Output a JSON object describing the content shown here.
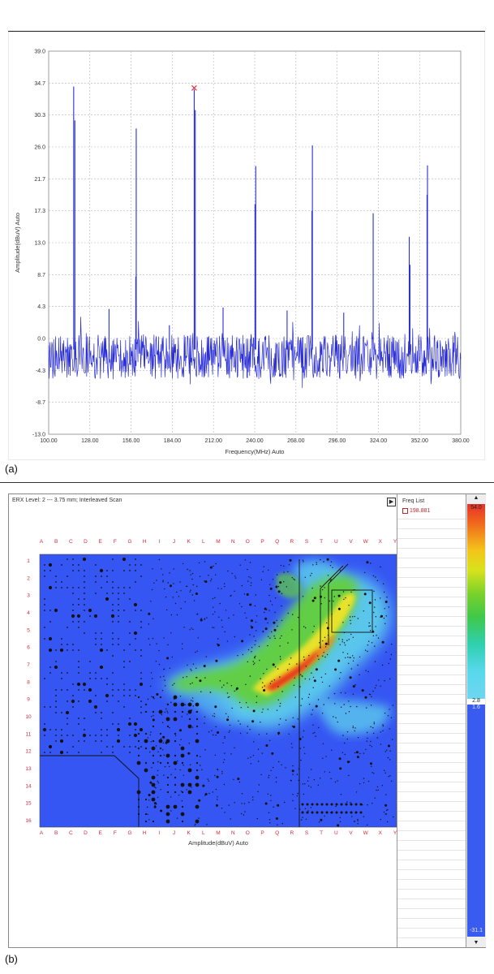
{
  "panel_a": {
    "caption": "(a)",
    "y_axis_label": "Amplitude(dBuV) Auto",
    "x_axis_label": "Frequency(MHz) Auto",
    "y_ticks": [
      "39.0",
      "34.7",
      "30.3",
      "26.0",
      "21.7",
      "17.3",
      "13.0",
      "8.7",
      "4.3",
      "0.0",
      "-4.3",
      "-8.7",
      "-13.0"
    ],
    "x_ticks": [
      "100.00",
      "128.00",
      "156.00",
      "184.00",
      "212.00",
      "240.00",
      "268.00",
      "296.00",
      "324.00",
      "352.00",
      "380.00"
    ],
    "trace_color": "#2a2ed6",
    "marker_color": "#e0202a"
  },
  "panel_b": {
    "caption": "(b)",
    "scan_title": "ERX Level: 2 --- 3.75 mm; Interleaved Scan",
    "x_axis_label": "Amplitude(dBuV) Auto",
    "column_labels": [
      "A",
      "B",
      "C",
      "D",
      "E",
      "F",
      "G",
      "H",
      "I",
      "J",
      "K",
      "L",
      "M",
      "N",
      "O",
      "P",
      "Q",
      "R",
      "S",
      "T",
      "U",
      "V",
      "W",
      "X",
      "Y"
    ],
    "row_labels": [
      "1",
      "2",
      "3",
      "4",
      "5",
      "6",
      "7",
      "8",
      "9",
      "10",
      "11",
      "12",
      "13",
      "14",
      "15",
      "16"
    ],
    "freq_list_title": "Freq List",
    "freq_entry": "198.881",
    "colorbar_max": "54.0",
    "colorbar_mid": "2.8",
    "colorbar_mid2": "1.6",
    "colorbar_min": "-31.1",
    "up_arrow": "▲",
    "down_arrow": "▼",
    "play_icon": "▶",
    "label_color": "#d6283a"
  },
  "chart_data": {
    "type": "line",
    "title": "",
    "xlabel": "Frequency(MHz) Auto",
    "ylabel": "Amplitude(dBuV) Auto",
    "xlim": [
      100,
      380
    ],
    "ylim": [
      -13,
      39
    ],
    "grid": true,
    "noise_floor_mean": -2.5,
    "noise_floor_spread": 3.0,
    "peaks": [
      {
        "x": 117.0,
        "y": 34.2
      },
      {
        "x": 117.8,
        "y": 29.6
      },
      {
        "x": 141.0,
        "y": 4.0
      },
      {
        "x": 159.5,
        "y": 28.5
      },
      {
        "x": 159.2,
        "y": 8.4
      },
      {
        "x": 182.0,
        "y": 1.8
      },
      {
        "x": 198.9,
        "y": 33.8
      },
      {
        "x": 199.6,
        "y": 31.0
      },
      {
        "x": 218.5,
        "y": 4.2
      },
      {
        "x": 240.7,
        "y": 23.4
      },
      {
        "x": 240.2,
        "y": 18.2
      },
      {
        "x": 262.0,
        "y": 3.8
      },
      {
        "x": 279.2,
        "y": 26.2
      },
      {
        "x": 278.9,
        "y": 17.3
      },
      {
        "x": 300.5,
        "y": 3.5
      },
      {
        "x": 320.5,
        "y": 17.0
      },
      {
        "x": 345.0,
        "y": 13.8
      },
      {
        "x": 345.5,
        "y": 10.0
      },
      {
        "x": 357.4,
        "y": 23.5
      },
      {
        "x": 357.1,
        "y": 19.5
      }
    ],
    "marker": {
      "x": 198.9,
      "y": 34.0
    }
  }
}
